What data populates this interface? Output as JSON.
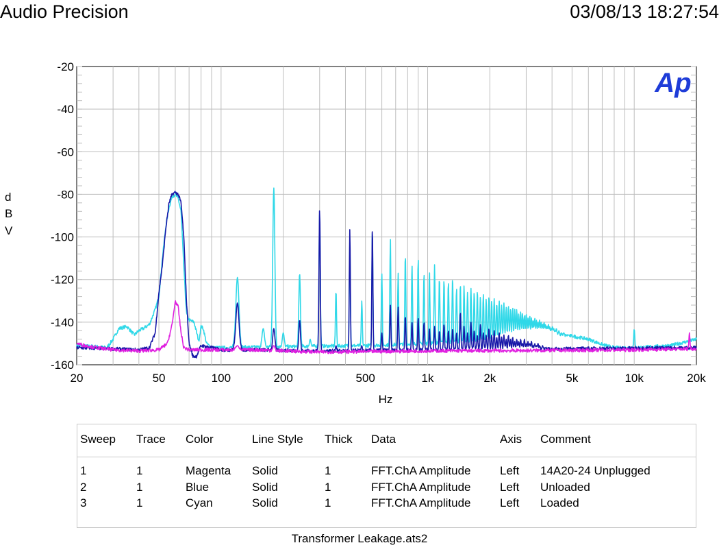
{
  "header": {
    "left": "Audio Precision",
    "right": "03/08/13 18:27:54"
  },
  "logo": "Ap",
  "footer": "Transformer Leakage.ats2",
  "chart_data": {
    "type": "line",
    "x_scale": "log",
    "xlabel": "Hz",
    "ylabel": "dBV",
    "ylabel_letters": [
      "d",
      "B",
      "V"
    ],
    "xlim": [
      20,
      20000
    ],
    "ylim": [
      -160,
      -20
    ],
    "grid": true,
    "y_ticks": [
      -20,
      -40,
      -60,
      -80,
      -100,
      -120,
      -140,
      -160
    ],
    "x_ticks": [
      {
        "v": 20,
        "label": "20"
      },
      {
        "v": 50,
        "label": "50"
      },
      {
        "v": 100,
        "label": "100"
      },
      {
        "v": 200,
        "label": "200"
      },
      {
        "v": 500,
        "label": "500"
      },
      {
        "v": 1000,
        "label": "1k"
      },
      {
        "v": 2000,
        "label": "2k"
      },
      {
        "v": 5000,
        "label": "5k"
      },
      {
        "v": 10000,
        "label": "10k"
      },
      {
        "v": 20000,
        "label": "20k"
      }
    ],
    "series": [
      {
        "name": "14A20-24 Unplugged",
        "color": "#e020e0",
        "floor": [
          [
            20,
            -150
          ],
          [
            22,
            -151
          ],
          [
            25,
            -152
          ],
          [
            30,
            -153
          ],
          [
            40,
            -153.5
          ],
          [
            50,
            -153
          ],
          [
            55,
            -150
          ],
          [
            58,
            -141
          ],
          [
            60,
            -130
          ],
          [
            62,
            -133
          ],
          [
            64,
            -145
          ],
          [
            66,
            -152
          ],
          [
            70,
            -153
          ],
          [
            80,
            -153
          ],
          [
            100,
            -153
          ],
          [
            150,
            -153
          ],
          [
            200,
            -153.5
          ],
          [
            300,
            -154
          ],
          [
            500,
            -153.8
          ],
          [
            1000,
            -153.5
          ],
          [
            2000,
            -153.4
          ],
          [
            5000,
            -153.2
          ],
          [
            10000,
            -153
          ],
          [
            20000,
            -152.5
          ]
        ],
        "peaks": [
          [
            120,
            -151
          ],
          [
            180,
            -151
          ],
          [
            18500,
            -145
          ]
        ]
      },
      {
        "name": "Unloaded",
        "color": "#1818a8",
        "floor": [
          [
            20,
            -152
          ],
          [
            30,
            -152.5
          ],
          [
            40,
            -153
          ],
          [
            45,
            -152
          ],
          [
            48,
            -145
          ],
          [
            50,
            -126
          ],
          [
            52,
            -113
          ],
          [
            54,
            -96
          ],
          [
            56,
            -84
          ],
          [
            58,
            -80
          ],
          [
            60,
            -79
          ],
          [
            62,
            -80
          ],
          [
            64,
            -84
          ],
          [
            66,
            -100
          ],
          [
            68,
            -130
          ],
          [
            70,
            -150
          ],
          [
            73,
            -156
          ],
          [
            76,
            -156
          ],
          [
            80,
            -151
          ],
          [
            90,
            -152
          ],
          [
            100,
            -153
          ],
          [
            150,
            -153
          ],
          [
            300,
            -153.5
          ],
          [
            1000,
            -153
          ],
          [
            3000,
            -152.7
          ],
          [
            7000,
            -152.3
          ],
          [
            20000,
            -152
          ]
        ],
        "peaks": [
          [
            120,
            -131
          ],
          [
            180,
            -143
          ],
          [
            240,
            -139
          ],
          [
            300,
            -87
          ],
          [
            360,
            -151
          ],
          [
            420,
            -96
          ],
          [
            480,
            -151
          ],
          [
            540,
            -95
          ],
          [
            600,
            -145
          ],
          [
            660,
            -132
          ],
          [
            720,
            -133
          ],
          [
            780,
            -137
          ],
          [
            840,
            -140
          ],
          [
            900,
            -138
          ],
          [
            960,
            -140
          ],
          [
            1020,
            -143
          ],
          [
            1080,
            -142
          ],
          [
            1140,
            -144
          ],
          [
            1200,
            -141
          ],
          [
            1260,
            -144
          ],
          [
            1320,
            -143
          ],
          [
            1380,
            -145
          ],
          [
            1440,
            -135
          ],
          [
            1500,
            -142
          ],
          [
            1560,
            -145
          ],
          [
            1620,
            -140
          ],
          [
            1680,
            -144
          ],
          [
            1740,
            -146
          ],
          [
            1800,
            -141
          ],
          [
            1860,
            -145
          ],
          [
            1920,
            -146
          ],
          [
            1980,
            -143
          ],
          [
            2040,
            -146
          ],
          [
            2100,
            -144
          ],
          [
            2160,
            -147
          ],
          [
            2220,
            -145
          ],
          [
            2280,
            -147
          ],
          [
            2340,
            -146
          ],
          [
            2400,
            -148
          ],
          [
            2460,
            -146
          ],
          [
            2520,
            -148
          ],
          [
            2580,
            -147
          ],
          [
            2640,
            -149
          ],
          [
            2700,
            -148
          ],
          [
            2760,
            -149
          ],
          [
            2820,
            -148
          ],
          [
            2880,
            -150
          ],
          [
            2940,
            -148
          ],
          [
            3000,
            -150
          ],
          [
            3060,
            -149
          ],
          [
            3120,
            -150
          ],
          [
            3180,
            -149
          ],
          [
            3240,
            -151
          ],
          [
            3300,
            -150
          ],
          [
            3360,
            -151
          ],
          [
            3420,
            -150
          ],
          [
            3480,
            -151
          ],
          [
            3600,
            -151
          ],
          [
            3720,
            -152
          ]
        ]
      },
      {
        "name": "Loaded",
        "color": "#30d8e8",
        "floor": [
          [
            20,
            -151
          ],
          [
            25,
            -151.5
          ],
          [
            28,
            -152
          ],
          [
            30,
            -148
          ],
          [
            32,
            -143
          ],
          [
            35,
            -142
          ],
          [
            38,
            -146
          ],
          [
            40,
            -144
          ],
          [
            42,
            -143
          ],
          [
            45,
            -141
          ],
          [
            48,
            -134
          ],
          [
            50,
            -128
          ],
          [
            52,
            -110
          ],
          [
            54,
            -95
          ],
          [
            56,
            -86
          ],
          [
            58,
            -81
          ],
          [
            60,
            -80
          ],
          [
            62,
            -82
          ],
          [
            64,
            -88
          ],
          [
            66,
            -114
          ],
          [
            68,
            -136
          ],
          [
            70,
            -139
          ],
          [
            74,
            -140
          ],
          [
            78,
            -149
          ],
          [
            80,
            -142
          ],
          [
            82,
            -143
          ],
          [
            85,
            -150
          ],
          [
            90,
            -152
          ],
          [
            100,
            -152
          ],
          [
            200,
            -151.5
          ],
          [
            500,
            -151
          ],
          [
            1000,
            -150
          ],
          [
            2000,
            -148.5
          ],
          [
            3000,
            -147
          ],
          [
            4000,
            -146
          ],
          [
            5000,
            -146.5
          ],
          [
            6000,
            -148
          ],
          [
            7000,
            -150.5
          ],
          [
            8000,
            -152
          ],
          [
            10000,
            -152
          ],
          [
            15000,
            -151
          ],
          [
            20000,
            -148
          ]
        ],
        "peaks": [
          [
            120,
            -119
          ],
          [
            160,
            -143
          ],
          [
            180,
            -77
          ],
          [
            200,
            -145
          ],
          [
            240,
            -117
          ],
          [
            270,
            -148
          ],
          [
            300,
            -89
          ],
          [
            360,
            -125
          ],
          [
            420,
            -102
          ],
          [
            480,
            -130
          ],
          [
            540,
            -96
          ],
          [
            600,
            -117
          ],
          [
            660,
            -101
          ],
          [
            720,
            -117
          ],
          [
            780,
            -108
          ],
          [
            840,
            -113
          ],
          [
            900,
            -110
          ],
          [
            960,
            -117
          ],
          [
            1020,
            -116
          ],
          [
            1080,
            -113
          ],
          [
            1140,
            -119
          ],
          [
            1200,
            -120
          ],
          [
            1260,
            -121
          ],
          [
            1320,
            -119
          ],
          [
            1380,
            -124
          ],
          [
            1440,
            -122
          ],
          [
            1500,
            -123
          ],
          [
            1560,
            -126
          ],
          [
            1620,
            -124
          ],
          [
            1680,
            -126
          ],
          [
            1740,
            -125
          ],
          [
            1800,
            -128
          ],
          [
            1860,
            -127
          ],
          [
            1920,
            -129
          ],
          [
            1980,
            -128
          ],
          [
            2040,
            -130
          ],
          [
            2100,
            -129
          ],
          [
            2160,
            -131
          ],
          [
            2220,
            -130
          ],
          [
            2280,
            -132
          ],
          [
            2340,
            -131
          ],
          [
            2400,
            -133
          ],
          [
            2460,
            -132
          ],
          [
            2520,
            -134
          ],
          [
            2580,
            -133
          ],
          [
            2640,
            -134
          ],
          [
            2700,
            -134
          ],
          [
            2760,
            -136
          ],
          [
            2820,
            -135
          ],
          [
            2880,
            -136
          ],
          [
            2940,
            -137
          ],
          [
            3000,
            -136
          ],
          [
            3060,
            -138
          ],
          [
            3120,
            -137
          ],
          [
            3180,
            -138
          ],
          [
            3240,
            -139
          ],
          [
            3300,
            -138
          ],
          [
            3360,
            -139
          ],
          [
            3420,
            -140
          ],
          [
            3480,
            -139
          ],
          [
            3540,
            -140
          ],
          [
            3600,
            -141
          ],
          [
            3660,
            -140
          ],
          [
            3720,
            -141
          ],
          [
            3780,
            -142
          ],
          [
            3840,
            -141
          ],
          [
            3900,
            -142
          ],
          [
            3960,
            -143
          ],
          [
            4020,
            -142
          ],
          [
            4080,
            -143
          ],
          [
            4140,
            -144
          ],
          [
            4200,
            -143
          ],
          [
            4320,
            -144
          ],
          [
            4440,
            -145
          ],
          [
            4560,
            -145
          ],
          [
            4680,
            -146
          ],
          [
            4800,
            -146
          ],
          [
            4920,
            -147
          ],
          [
            5040,
            -147
          ],
          [
            5160,
            -148
          ],
          [
            5280,
            -148
          ],
          [
            5400,
            -149
          ],
          [
            5520,
            -149
          ],
          [
            5640,
            -150
          ],
          [
            5760,
            -150
          ],
          [
            5880,
            -150.5
          ],
          [
            6000,
            -151
          ],
          [
            10000,
            -143
          ]
        ]
      }
    ]
  },
  "legend": {
    "headers": [
      "Sweep",
      "Trace",
      "Color",
      "Line Style",
      "Thick",
      "Data",
      "Axis",
      "Comment"
    ],
    "rows": [
      [
        "1",
        "1",
        "Magenta",
        "Solid",
        "1",
        "FFT.ChA Amplitude",
        "Left",
        "14A20-24 Unplugged"
      ],
      [
        "2",
        "1",
        "Blue",
        "Solid",
        "1",
        "FFT.ChA Amplitude",
        "Left",
        "Unloaded"
      ],
      [
        "3",
        "1",
        "Cyan",
        "Solid",
        "1",
        "FFT.ChA Amplitude",
        "Left",
        "Loaded"
      ]
    ]
  }
}
